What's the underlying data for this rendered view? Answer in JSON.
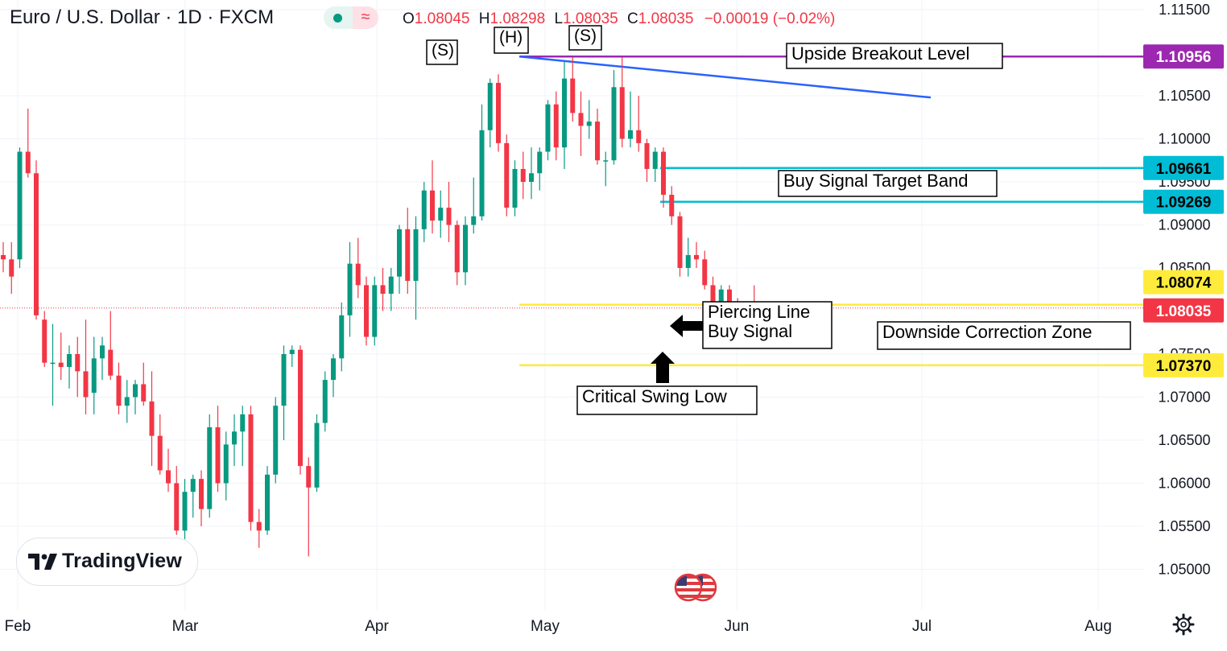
{
  "header": {
    "symbol": "Euro / U.S. Dollar · 1D · FXCM",
    "ohlc": {
      "o_label": "O",
      "o": "1.08045",
      "h_label": "H",
      "h": "1.08298",
      "l_label": "L",
      "l": "1.08035",
      "c_label": "C",
      "c": "1.08035",
      "change": "−0.00019 (−0.02%)"
    },
    "status_icons": [
      "market-open-dot-icon",
      "approx-icon"
    ]
  },
  "logo": {
    "text": "TradingView"
  },
  "chart_data": {
    "type": "candlestick",
    "y_axis": {
      "ticks": [
        "1.11500",
        "1.10500",
        "1.10000",
        "1.09500",
        "1.09000",
        "1.08500",
        "1.07500",
        "1.07000",
        "1.06500",
        "1.06000",
        "1.05500",
        "1.05000"
      ],
      "range": [
        1.0455,
        1.1165
      ],
      "side": "right"
    },
    "x_axis": {
      "ticks": [
        "Feb",
        "Mar",
        "Apr",
        "May",
        "Jun",
        "Jul",
        "Aug"
      ]
    },
    "colors": {
      "up": "#089981",
      "down": "#f23645"
    },
    "candles": [
      {
        "o": 1.0865,
        "h": 1.088,
        "l": 1.0845,
        "c": 1.086
      },
      {
        "o": 1.086,
        "h": 1.088,
        "l": 1.082,
        "c": 1.084
      },
      {
        "o": 1.086,
        "h": 1.099,
        "l": 1.085,
        "c": 1.0985
      },
      {
        "o": 1.0985,
        "h": 1.1035,
        "l": 1.0955,
        "c": 1.096
      },
      {
        "o": 1.096,
        "h": 1.0975,
        "l": 1.079,
        "c": 1.0795
      },
      {
        "o": 1.079,
        "h": 1.08,
        "l": 1.0735,
        "c": 1.074
      },
      {
        "o": 1.074,
        "h": 1.0785,
        "l": 1.069,
        "c": 1.074
      },
      {
        "o": 1.074,
        "h": 1.0775,
        "l": 1.072,
        "c": 1.0735
      },
      {
        "o": 1.0735,
        "h": 1.076,
        "l": 1.071,
        "c": 1.075
      },
      {
        "o": 1.075,
        "h": 1.077,
        "l": 1.07,
        "c": 1.073
      },
      {
        "o": 1.073,
        "h": 1.079,
        "l": 1.068,
        "c": 1.07
      },
      {
        "o": 1.0705,
        "h": 1.077,
        "l": 1.068,
        "c": 1.0745
      },
      {
        "o": 1.0745,
        "h": 1.077,
        "l": 1.072,
        "c": 1.076
      },
      {
        "o": 1.0755,
        "h": 1.08,
        "l": 1.072,
        "c": 1.0725
      },
      {
        "o": 1.0725,
        "h": 1.074,
        "l": 1.068,
        "c": 1.069
      },
      {
        "o": 1.069,
        "h": 1.072,
        "l": 1.067,
        "c": 1.07
      },
      {
        "o": 1.07,
        "h": 1.072,
        "l": 1.068,
        "c": 1.0715
      },
      {
        "o": 1.0715,
        "h": 1.074,
        "l": 1.069,
        "c": 1.0695
      },
      {
        "o": 1.0695,
        "h": 1.073,
        "l": 1.062,
        "c": 1.0655
      },
      {
        "o": 1.0655,
        "h": 1.068,
        "l": 1.061,
        "c": 1.0615
      },
      {
        "o": 1.0615,
        "h": 1.064,
        "l": 1.059,
        "c": 1.06
      },
      {
        "o": 1.06,
        "h": 1.062,
        "l": 1.054,
        "c": 1.0545
      },
      {
        "o": 1.0545,
        "h": 1.0605,
        "l": 1.0535,
        "c": 1.059
      },
      {
        "o": 1.059,
        "h": 1.061,
        "l": 1.056,
        "c": 1.0605
      },
      {
        "o": 1.0605,
        "h": 1.0615,
        "l": 1.055,
        "c": 1.057
      },
      {
        "o": 1.057,
        "h": 1.068,
        "l": 1.056,
        "c": 1.0665
      },
      {
        "o": 1.0665,
        "h": 1.069,
        "l": 1.059,
        "c": 1.06
      },
      {
        "o": 1.06,
        "h": 1.066,
        "l": 1.058,
        "c": 1.0645
      },
      {
        "o": 1.0645,
        "h": 1.068,
        "l": 1.062,
        "c": 1.066
      },
      {
        "o": 1.066,
        "h": 1.069,
        "l": 1.062,
        "c": 1.068
      },
      {
        "o": 1.068,
        "h": 1.069,
        "l": 1.0545,
        "c": 1.0555
      },
      {
        "o": 1.0555,
        "h": 1.057,
        "l": 1.0525,
        "c": 1.0545
      },
      {
        "o": 1.0545,
        "h": 1.062,
        "l": 1.054,
        "c": 1.061
      },
      {
        "o": 1.061,
        "h": 1.07,
        "l": 1.06,
        "c": 1.069
      },
      {
        "o": 1.069,
        "h": 1.076,
        "l": 1.065,
        "c": 1.075
      },
      {
        "o": 1.075,
        "h": 1.076,
        "l": 1.0735,
        "c": 1.0755
      },
      {
        "o": 1.0755,
        "h": 1.076,
        "l": 1.061,
        "c": 1.062
      },
      {
        "o": 1.062,
        "h": 1.063,
        "l": 1.0515,
        "c": 1.0595
      },
      {
        "o": 1.0595,
        "h": 1.068,
        "l": 1.059,
        "c": 1.067
      },
      {
        "o": 1.067,
        "h": 1.073,
        "l": 1.066,
        "c": 1.072
      },
      {
        "o": 1.072,
        "h": 1.075,
        "l": 1.07,
        "c": 1.0745
      },
      {
        "o": 1.0745,
        "h": 1.081,
        "l": 1.073,
        "c": 1.0795
      },
      {
        "o": 1.0795,
        "h": 1.088,
        "l": 1.077,
        "c": 1.0855
      },
      {
        "o": 1.0855,
        "h": 1.0885,
        "l": 1.0815,
        "c": 1.083
      },
      {
        "o": 1.083,
        "h": 1.084,
        "l": 1.076,
        "c": 1.077
      },
      {
        "o": 1.077,
        "h": 1.084,
        "l": 1.076,
        "c": 1.083
      },
      {
        "o": 1.083,
        "h": 1.085,
        "l": 1.08,
        "c": 1.082
      },
      {
        "o": 1.082,
        "h": 1.085,
        "l": 1.08,
        "c": 1.084
      },
      {
        "o": 1.084,
        "h": 1.09,
        "l": 1.082,
        "c": 1.0895
      },
      {
        "o": 1.0895,
        "h": 1.092,
        "l": 1.082,
        "c": 1.0835
      },
      {
        "o": 1.0835,
        "h": 1.091,
        "l": 1.079,
        "c": 1.0895
      },
      {
        "o": 1.0895,
        "h": 1.095,
        "l": 1.088,
        "c": 1.094
      },
      {
        "o": 1.094,
        "h": 1.0975,
        "l": 1.089,
        "c": 1.0905
      },
      {
        "o": 1.0905,
        "h": 1.094,
        "l": 1.0885,
        "c": 1.092
      },
      {
        "o": 1.092,
        "h": 1.095,
        "l": 1.088,
        "c": 1.09
      },
      {
        "o": 1.09,
        "h": 1.0905,
        "l": 1.083,
        "c": 1.0845
      },
      {
        "o": 1.0845,
        "h": 1.091,
        "l": 1.083,
        "c": 1.09
      },
      {
        "o": 1.09,
        "h": 1.0955,
        "l": 1.089,
        "c": 1.091
      },
      {
        "o": 1.091,
        "h": 1.104,
        "l": 1.0905,
        "c": 1.101
      },
      {
        "o": 1.101,
        "h": 1.107,
        "l": 1.099,
        "c": 1.1065
      },
      {
        "o": 1.1065,
        "h": 1.1075,
        "l": 1.0985,
        "c": 1.0995
      },
      {
        "o": 1.0995,
        "h": 1.1005,
        "l": 1.091,
        "c": 1.092
      },
      {
        "o": 1.092,
        "h": 1.0975,
        "l": 1.091,
        "c": 1.0965
      },
      {
        "o": 1.0965,
        "h": 1.0985,
        "l": 1.093,
        "c": 1.095
      },
      {
        "o": 1.095,
        "h": 1.099,
        "l": 1.093,
        "c": 1.096
      },
      {
        "o": 1.096,
        "h": 1.099,
        "l": 1.094,
        "c": 1.0985
      },
      {
        "o": 1.0985,
        "h": 1.1045,
        "l": 1.0975,
        "c": 1.104
      },
      {
        "o": 1.104,
        "h": 1.1055,
        "l": 1.0975,
        "c": 1.099
      },
      {
        "o": 1.099,
        "h": 1.109,
        "l": 1.0965,
        "c": 1.107
      },
      {
        "o": 1.107,
        "h": 1.1095,
        "l": 1.102,
        "c": 1.103
      },
      {
        "o": 1.103,
        "h": 1.1055,
        "l": 1.098,
        "c": 1.1015
      },
      {
        "o": 1.1015,
        "h": 1.1045,
        "l": 1.1,
        "c": 1.102
      },
      {
        "o": 1.102,
        "h": 1.1035,
        "l": 1.097,
        "c": 1.0975
      },
      {
        "o": 1.0975,
        "h": 1.0985,
        "l": 1.0945,
        "c": 1.0975
      },
      {
        "o": 1.0975,
        "h": 1.108,
        "l": 1.097,
        "c": 1.106
      },
      {
        "o": 1.106,
        "h": 1.1095,
        "l": 1.099,
        "c": 1.1
      },
      {
        "o": 1.1,
        "h": 1.1055,
        "l": 1.099,
        "c": 1.101
      },
      {
        "o": 1.101,
        "h": 1.105,
        "l": 1.0985,
        "c": 1.0995
      },
      {
        "o": 1.0995,
        "h": 1.1,
        "l": 1.095,
        "c": 1.0965
      },
      {
        "o": 1.0965,
        "h": 1.099,
        "l": 1.095,
        "c": 1.0985
      },
      {
        "o": 1.0985,
        "h": 1.099,
        "l": 1.092,
        "c": 1.0935
      },
      {
        "o": 1.0935,
        "h": 1.0945,
        "l": 1.09,
        "c": 1.091
      },
      {
        "o": 1.091,
        "h": 1.0915,
        "l": 1.084,
        "c": 1.085
      },
      {
        "o": 1.085,
        "h": 1.0885,
        "l": 1.084,
        "c": 1.0865
      },
      {
        "o": 1.0865,
        "h": 1.088,
        "l": 1.085,
        "c": 1.086
      },
      {
        "o": 1.086,
        "h": 1.087,
        "l": 1.0825,
        "c": 1.083
      },
      {
        "o": 1.083,
        "h": 1.084,
        "l": 1.079,
        "c": 1.0795
      },
      {
        "o": 1.0795,
        "h": 1.083,
        "l": 1.079,
        "c": 1.0825
      },
      {
        "o": 1.0825,
        "h": 1.083,
        "l": 1.0795,
        "c": 1.08
      },
      {
        "o": 1.08,
        "h": 1.0815,
        "l": 1.076,
        "c": 1.0765
      },
      {
        "o": 1.0765,
        "h": 1.081,
        "l": 1.0758,
        "c": 1.0803
      },
      {
        "o": 1.08045,
        "h": 1.08298,
        "l": 1.08035,
        "c": 1.08035
      }
    ],
    "horizontal_levels": [
      {
        "name": "upside-breakout",
        "value": 1.10956,
        "color": "#9c27b0",
        "label": "1.10956"
      },
      {
        "name": "target-upper",
        "value": 1.09661,
        "color": "#00bcd4",
        "label": "1.09661"
      },
      {
        "name": "target-lower",
        "value": 1.09269,
        "color": "#00bcd4",
        "label": "1.09269"
      },
      {
        "name": "correction-upper",
        "value": 1.08074,
        "color": "#ffeb3b",
        "label": "1.08074"
      },
      {
        "name": "swing-low",
        "value": 1.0737,
        "color": "#ffeb3b",
        "label": "1.07370"
      }
    ],
    "current_price": {
      "value": 1.08035,
      "label": "1.08035",
      "color": "#f23645"
    },
    "neckline": {
      "color": "#2962ff"
    },
    "annotations": {
      "left_shoulder": "(S)",
      "head": "(H)",
      "right_shoulder": "(S)",
      "upside_breakout": "Upside Breakout Level",
      "buy_target": "Buy Signal Target Band",
      "piercing_line_1": "Piercing Line",
      "piercing_line_2": "Buy Signal",
      "downside_zone": "Downside Correction Zone",
      "swing_low": "Critical Swing Low"
    }
  }
}
